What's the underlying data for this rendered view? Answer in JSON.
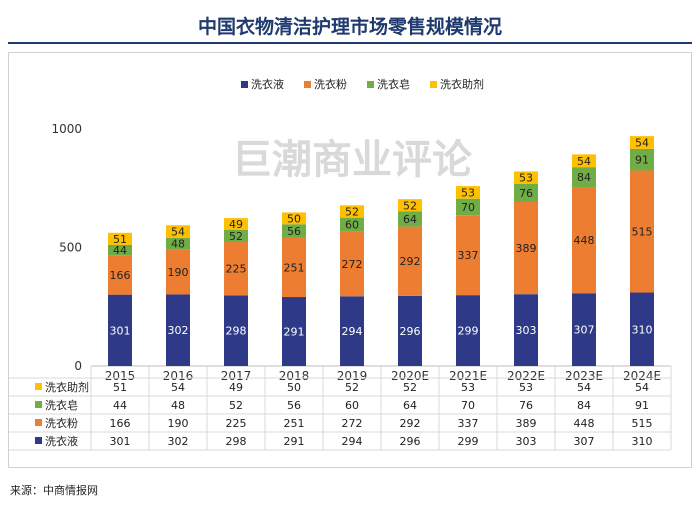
{
  "title": "中国衣物清洁护理市场零售规模情况",
  "watermark": "巨潮商业评论",
  "source": "来源：中商情报网",
  "colors": {
    "洗衣液": "#2e3a87",
    "洗衣粉": "#ed7d31",
    "洗衣皂": "#70ad47",
    "洗衣助剂": "#ffc000"
  },
  "chart_data": {
    "type": "bar",
    "stacked": true,
    "title": "中国衣物清洁护理市场零售规模情况",
    "categories": [
      "2015",
      "2016",
      "2017",
      "2018",
      "2019",
      "2020E",
      "2021E",
      "2022E",
      "2023E",
      "2024E"
    ],
    "series": [
      {
        "name": "洗衣液",
        "values": [
          301,
          302,
          298,
          291,
          294,
          296,
          299,
          303,
          307,
          310
        ]
      },
      {
        "name": "洗衣粉",
        "values": [
          166,
          190,
          225,
          251,
          272,
          292,
          337,
          389,
          448,
          515
        ]
      },
      {
        "name": "洗衣皂",
        "values": [
          44,
          48,
          52,
          56,
          60,
          64,
          70,
          76,
          84,
          91
        ]
      },
      {
        "name": "洗衣助剂",
        "values": [
          51,
          54,
          49,
          50,
          52,
          52,
          53,
          53,
          54,
          54
        ]
      }
    ],
    "ylim": [
      0,
      1000
    ],
    "yticks": [
      "0",
      "500",
      "1000"
    ],
    "legend": "top",
    "legend_order": [
      "洗衣液",
      "洗衣粉",
      "洗衣皂",
      "洗衣助剂"
    ],
    "table_order": [
      "洗衣助剂",
      "洗衣皂",
      "洗衣粉",
      "洗衣液"
    ]
  }
}
